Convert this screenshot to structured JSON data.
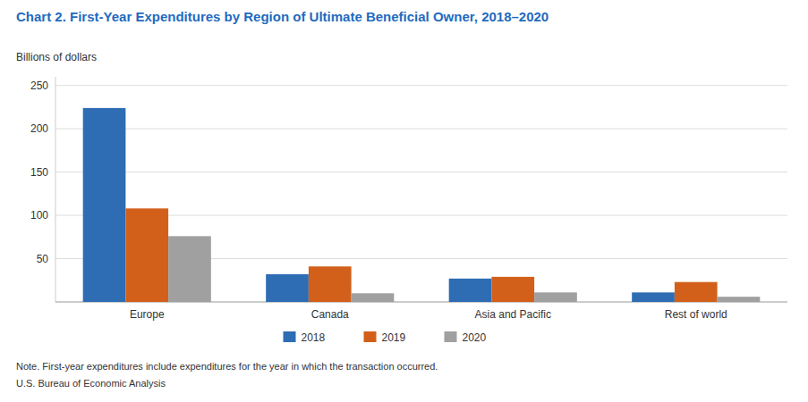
{
  "chart_data": {
    "type": "bar",
    "title": "Chart 2. First-Year Expenditures by Region of Ultimate Beneficial Owner, 2018–2020",
    "ylabel": "Billions of dollars",
    "note": "Note. First-year expenditures include expenditures for the year in which the transaction occurred.",
    "source": "U.S. Bureau of Economic Analysis",
    "categories": [
      "Europe",
      "Canada",
      "Asia and Pacific",
      "Rest of world"
    ],
    "series": [
      {
        "name": "2018",
        "color": "#2e6db4",
        "values": [
          224,
          32,
          27,
          11
        ]
      },
      {
        "name": "2019",
        "color": "#d2601a",
        "values": [
          108,
          41,
          29,
          23
        ]
      },
      {
        "name": "2020",
        "color": "#a0a0a0",
        "values": [
          76,
          10,
          11,
          6
        ]
      }
    ],
    "ylim": [
      0,
      260
    ],
    "yticks": [
      50,
      100,
      150,
      200,
      250
    ],
    "grid": true,
    "legend": "bottom"
  }
}
